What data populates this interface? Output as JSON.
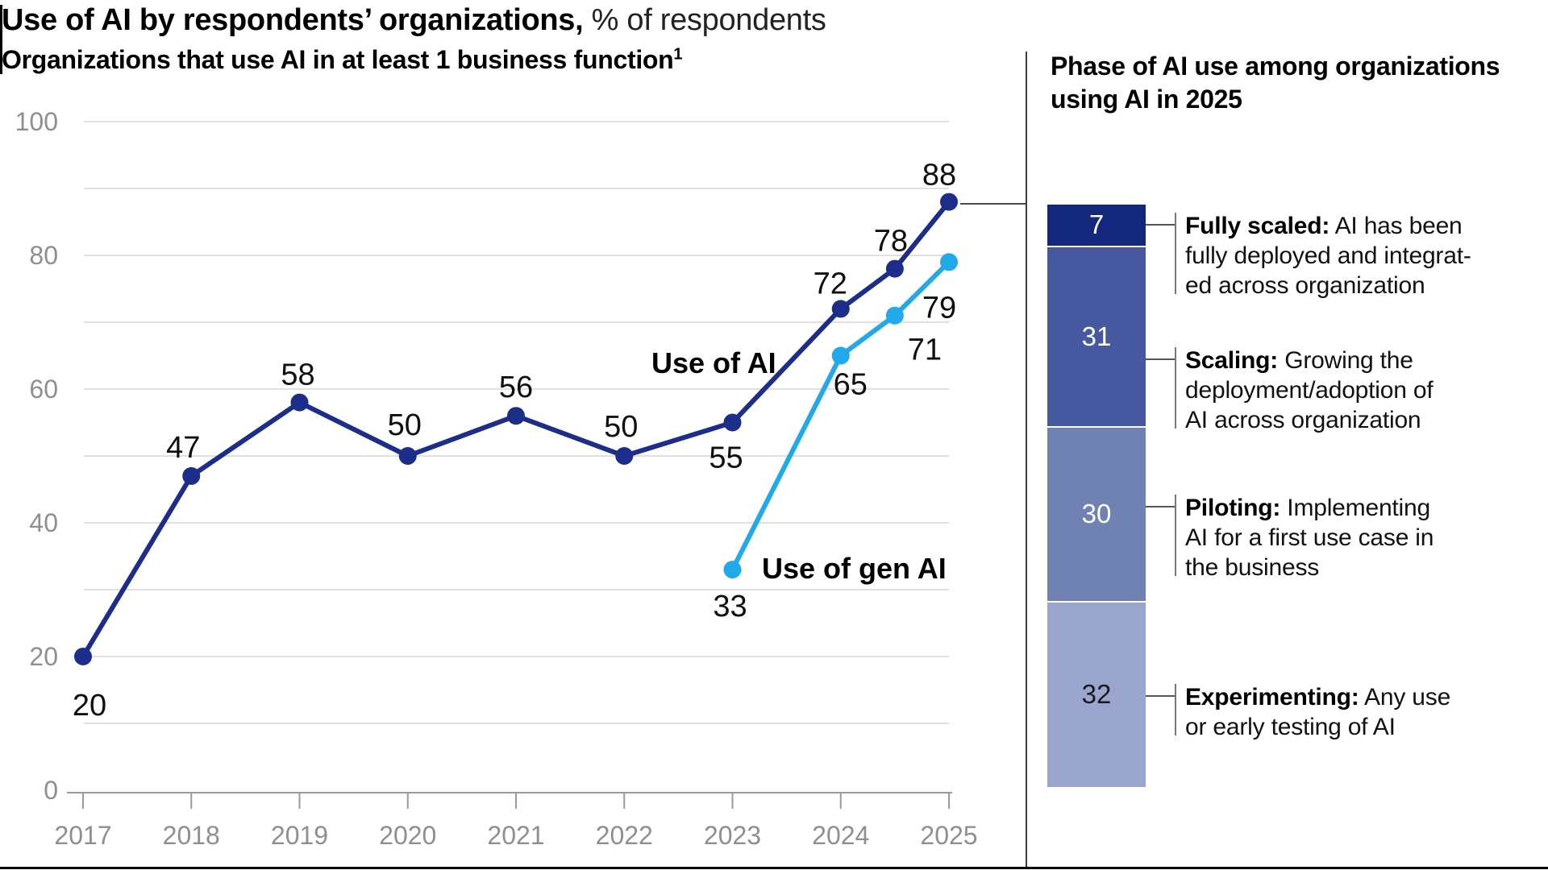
{
  "header": {
    "title_bold": "Use of AI by respondents’ organizations,",
    "title_rest": " % of respondents",
    "subtitle": "Organizations that use AI in at least 1 business function",
    "subtitle_superscript": "1"
  },
  "chart_data": {
    "type": "line",
    "title": "Organizations that use AI in at least 1 business function",
    "ylabel": "% of respondents",
    "xlabel": "",
    "ylim": [
      0,
      100
    ],
    "grid": true,
    "gridline_values": [
      10,
      20,
      30,
      40,
      50,
      60,
      70,
      80,
      90,
      100
    ],
    "y_tick_labels": [
      0,
      20,
      40,
      60,
      80,
      100
    ],
    "x_tick_labels": [
      "2017",
      "2018",
      "2019",
      "2020",
      "2021",
      "2022",
      "2023",
      "2024",
      "2025"
    ],
    "legend_position": "inline-labels",
    "series": [
      {
        "name": "Use of AI",
        "color": "#1c2e8a",
        "points": [
          {
            "x": 2017,
            "y": 20,
            "dx": 8,
            "dy": 61
          },
          {
            "x": 2018,
            "y": 47,
            "dx": -10,
            "dy": -35
          },
          {
            "x": 2019,
            "y": 58,
            "dx": -2,
            "dy": -34
          },
          {
            "x": 2020,
            "y": 50,
            "dx": -4,
            "dy": -38
          },
          {
            "x": 2021,
            "y": 56,
            "dx": 0,
            "dy": -35
          },
          {
            "x": 2022,
            "y": 50,
            "dx": -4,
            "dy": -36
          },
          {
            "x": 2023,
            "y": 55,
            "dx": -8,
            "dy": 44
          },
          {
            "x": 2024,
            "y": 72,
            "dx": -13,
            "dy": -31
          },
          {
            "x": 2024.5,
            "y": 78,
            "dx": -5,
            "dy": -34
          },
          {
            "x": 2025,
            "y": 88,
            "dx": -12,
            "dy": -33
          }
        ]
      },
      {
        "name": "Use of gen AI",
        "color": "#21a9ec",
        "points": [
          {
            "x": 2023,
            "y": 33,
            "dx": -3,
            "dy": 46
          },
          {
            "x": 2024,
            "y": 65,
            "dx": 12,
            "dy": 36
          },
          {
            "x": 2024.5,
            "y": 71,
            "dx": 37,
            "dy": 43
          },
          {
            "x": 2025,
            "y": 79,
            "dx": -12,
            "dy": 57
          }
        ]
      }
    ]
  },
  "phase_panel": {
    "title": "Phase of AI use among organizations using AI in 2025",
    "segments": [
      {
        "value": 7,
        "color": "#13287d",
        "text_color": "#ffffff",
        "term": "Fully scaled:",
        "desc_lines": [
          "AI has been",
          "fully deployed and integrat-",
          "ed across organization"
        ]
      },
      {
        "value": 31,
        "color": "#46589f",
        "text_color": "#ffffff",
        "term": "Scaling:",
        "desc_lines": [
          "Growing the",
          "deployment/adoption of",
          "AI across organization"
        ]
      },
      {
        "value": 30,
        "color": "#7081b3",
        "text_color": "#ffffff",
        "term": "Piloting:",
        "desc_lines": [
          "Implementing",
          "AI for a first use case in",
          "the business"
        ]
      },
      {
        "value": 32,
        "color": "#9ba6ce",
        "text_color": "#1a1a1a",
        "term": "Experimenting:",
        "desc_lines": [
          "Any use",
          "or early testing of AI"
        ]
      }
    ]
  }
}
